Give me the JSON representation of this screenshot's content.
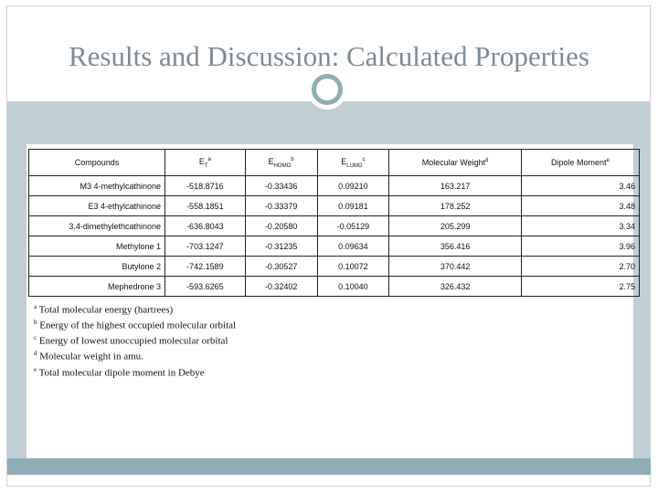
{
  "title": "Results and Discussion: Calculated Properties",
  "table": {
    "headers": {
      "compounds": "Compounds",
      "et": "E",
      "et_sub": "T",
      "et_sup": "a",
      "ehomo": "E",
      "ehomo_sub": "HOMO",
      "ehomo_sup": "b",
      "elumo": "E",
      "elumo_sub": "LUMO",
      "elumo_sup": "c",
      "mw": "Molecular Weight",
      "mw_sup": "d",
      "dipole": "Dipole Moment",
      "dipole_sup": "e"
    },
    "rows": [
      {
        "name": "M3 4-methylcathinone",
        "et": "-518.8716",
        "ehomo": "-0.33436",
        "elumo": "0.09210",
        "mw": "163.217",
        "dipole": "3.46"
      },
      {
        "name": "E3 4-ethylcathinone",
        "et": "-558.1851",
        "ehomo": "-0.33379",
        "elumo": "0.09181",
        "mw": "178.252",
        "dipole": "3.48"
      },
      {
        "name": "3,4-dimethylethcathinone",
        "et": "-636.8043",
        "ehomo": "-0.20580",
        "elumo": "-0.05129",
        "mw": "205.299",
        "dipole": "3.34"
      },
      {
        "name": "Methylone 1",
        "et": "-703.1247",
        "ehomo": "-0.31235",
        "elumo": "0.09634",
        "mw": "356.416",
        "dipole": "3.96"
      },
      {
        "name": "Butylone 2",
        "et": "-742.1589",
        "ehomo": "-0.30527",
        "elumo": "0.10072",
        "mw": "370.442",
        "dipole": "2.70"
      },
      {
        "name": "Mephedrone 3",
        "et": "-593.6265",
        "ehomo": "-0.32402",
        "elumo": "0.10040",
        "mw": "326.432",
        "dipole": "2.75"
      }
    ]
  },
  "footnotes": [
    {
      "mark": "a",
      "text": "Total molecular energy (hartrees)"
    },
    {
      "mark": "b",
      "text": "Energy of the highest occupied molecular orbital"
    },
    {
      "mark": "c",
      "text": "Energy of lowest unoccupied molecular orbital"
    },
    {
      "mark": "d",
      "text": "Molecular weight in amu."
    },
    {
      "mark": "e",
      "text": "Total molecular dipole moment in Debye"
    }
  ],
  "colors": {
    "title": "#7d8b95",
    "band": "#c1cfd5",
    "footer": "#8fadb6"
  }
}
